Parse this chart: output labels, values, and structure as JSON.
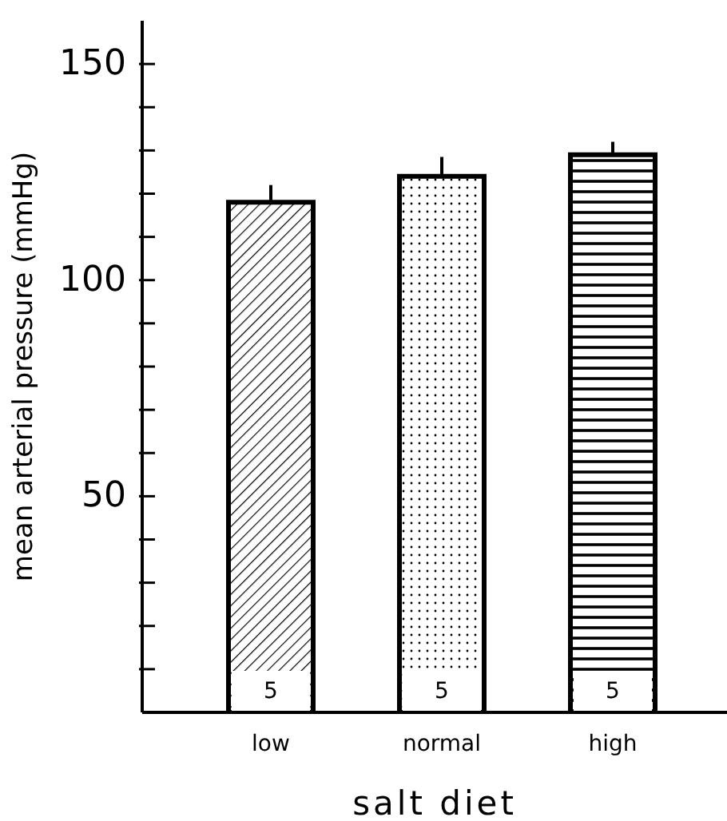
{
  "chart_data": {
    "type": "bar",
    "xlabel": "salt diet",
    "ylabel": "mean arterial pressure (mmHg)",
    "categories": [
      "low",
      "normal",
      "high"
    ],
    "values": [
      118,
      124,
      129
    ],
    "errors": [
      [
        118,
        122
      ],
      [
        124,
        128.5
      ],
      [
        129,
        132
      ]
    ],
    "colors": [
      "#000000",
      "#000000",
      "#000000"
    ],
    "ylim": [
      0,
      160
    ],
    "yticks": [
      {
        "value": 10,
        "label": null
      },
      {
        "value": 20,
        "label": null
      },
      {
        "value": 30,
        "label": null
      },
      {
        "value": 40,
        "label": null
      },
      50,
      {
        "value": 60,
        "label": null
      },
      {
        "value": 70,
        "label": null
      },
      {
        "value": 80,
        "label": null
      },
      {
        "value": 90,
        "label": null
      },
      100,
      {
        "value": 110,
        "label": null
      },
      {
        "value": 120,
        "label": null
      },
      {
        "value": 130,
        "label": null
      },
      {
        "value": 140,
        "label": null
      },
      150
    ],
    "annotations": [
      "5",
      "5",
      "5"
    ],
    "grid": false,
    "legend": false
  }
}
